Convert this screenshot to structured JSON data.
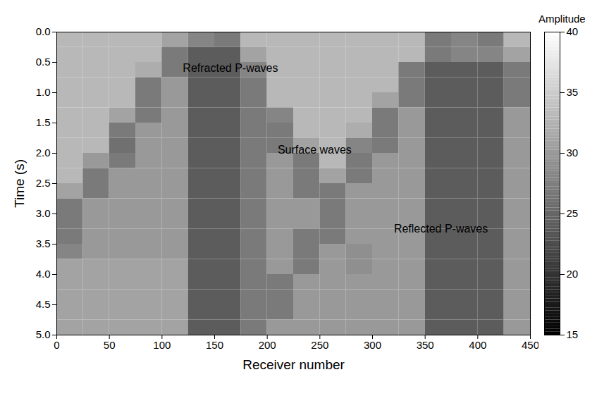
{
  "chart_data": {
    "type": "heatmap",
    "xlabel": "Receiver number",
    "ylabel": "Time (s)",
    "xlim": [
      0,
      450
    ],
    "xticks": [
      0,
      50,
      100,
      150,
      200,
      250,
      300,
      350,
      400,
      450
    ],
    "ylim": [
      0,
      5
    ],
    "yticks": [
      0,
      0.5,
      1,
      1.5,
      2,
      2.5,
      3,
      3.5,
      4,
      4.5,
      5
    ],
    "xbins": [
      0,
      25,
      50,
      75,
      100,
      125,
      150,
      175,
      200,
      225,
      250,
      275,
      300,
      325,
      350,
      375,
      400,
      425,
      450
    ],
    "ybins": [
      0,
      0.25,
      0.5,
      0.75,
      1,
      1.25,
      1.5,
      1.75,
      2,
      2.25,
      2.5,
      2.75,
      3,
      3.25,
      3.5,
      3.75,
      4,
      4.25,
      4.5,
      4.75,
      5
    ],
    "z": [
      [
        33,
        33,
        33,
        33,
        31,
        28,
        27,
        33,
        33,
        33,
        33,
        33,
        33,
        33,
        27,
        28,
        27,
        33
      ],
      [
        33,
        33,
        33,
        33,
        27,
        24,
        24,
        31,
        33,
        33,
        33,
        33,
        33,
        33,
        27,
        28,
        28,
        31
      ],
      [
        33,
        33,
        33,
        32,
        27,
        24,
        24,
        28,
        33,
        33,
        33,
        33,
        33,
        27,
        24,
        24,
        24,
        27
      ],
      [
        33,
        33,
        33,
        27,
        30,
        24,
        24,
        27,
        33,
        33,
        33,
        33,
        33,
        27,
        24,
        24,
        24,
        27
      ],
      [
        33,
        33,
        33,
        27,
        30,
        24,
        24,
        27,
        33,
        33,
        33,
        33,
        31,
        27,
        24,
        24,
        24,
        27
      ],
      [
        33,
        33,
        31,
        27,
        30,
        24,
        24,
        27,
        28,
        33,
        33,
        33,
        27,
        30,
        24,
        24,
        24,
        30
      ],
      [
        33,
        33,
        27,
        30,
        30,
        24,
        24,
        27,
        27,
        33,
        33,
        32,
        27,
        30,
        24,
        24,
        24,
        30
      ],
      [
        33,
        33,
        26,
        30,
        30,
        24,
        24,
        27,
        27,
        31,
        33,
        28,
        27,
        30,
        24,
        24,
        24,
        30
      ],
      [
        33,
        30,
        27,
        30,
        30,
        24,
        24,
        27,
        30,
        27,
        33,
        27,
        30,
        30,
        24,
        24,
        24,
        30
      ],
      [
        33,
        27,
        30,
        30,
        30,
        24,
        24,
        27,
        30,
        27,
        31,
        27,
        30,
        30,
        24,
        24,
        24,
        30
      ],
      [
        31,
        27,
        30,
        30,
        30,
        24,
        24,
        27,
        30,
        27,
        27,
        30,
        30,
        30,
        24,
        24,
        24,
        30
      ],
      [
        27,
        30,
        30,
        30,
        30,
        24,
        24,
        27,
        30,
        30,
        27,
        30,
        30,
        30,
        24,
        24,
        24,
        30
      ],
      [
        27,
        30,
        30,
        30,
        30,
        24,
        24,
        27,
        30,
        30,
        27,
        30,
        30,
        30,
        24,
        24,
        24,
        30
      ],
      [
        27,
        30,
        30,
        30,
        30,
        24,
        24,
        27,
        30,
        27,
        27,
        30,
        30,
        30,
        24,
        24,
        24,
        30
      ],
      [
        28,
        30,
        30,
        30,
        30,
        24,
        24,
        27,
        30,
        27,
        30,
        29,
        30,
        30,
        24,
        24,
        24,
        30
      ],
      [
        31,
        31,
        31,
        31,
        31,
        24,
        24,
        27,
        30,
        27,
        30,
        29,
        30,
        30,
        24,
        24,
        24,
        30
      ],
      [
        31,
        31,
        31,
        31,
        31,
        24,
        24,
        27,
        27,
        30,
        30,
        30,
        30,
        30,
        24,
        24,
        24,
        30
      ],
      [
        31,
        31,
        31,
        31,
        31,
        24,
        24,
        27,
        27,
        30,
        30,
        30,
        30,
        30,
        24,
        24,
        24,
        30
      ],
      [
        31,
        31,
        31,
        31,
        31,
        24,
        24,
        27,
        27,
        30,
        30,
        30,
        30,
        30,
        24,
        24,
        24,
        30
      ],
      [
        31,
        31,
        31,
        31,
        31,
        24,
        24,
        27,
        30,
        30,
        30,
        30,
        30,
        30,
        24,
        24,
        24,
        30
      ]
    ],
    "colorbar": {
      "label": "Amplitude",
      "lim": [
        15,
        40
      ],
      "ticks": [
        15,
        20,
        25,
        30,
        35,
        40
      ]
    },
    "annotations": [
      {
        "text": "Refracted P-waves",
        "x": 165,
        "y": 0.6,
        "color": "#f0a078"
      },
      {
        "text": "Surface waves",
        "x": 245,
        "y": 1.95,
        "color": "#5cb85c"
      },
      {
        "text": "Reflected P-waves",
        "x": 365,
        "y": 3.25,
        "color": "#f2c94c"
      }
    ]
  }
}
